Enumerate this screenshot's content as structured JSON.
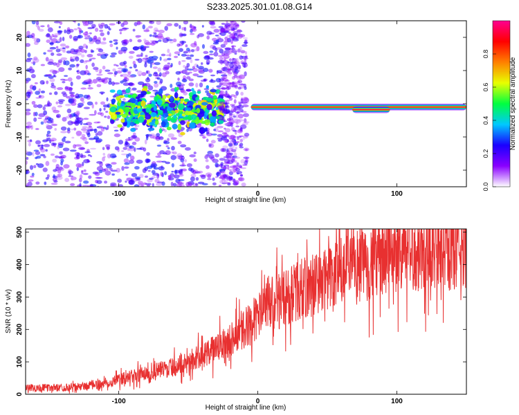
{
  "figure_title": "S233.2025.301.01.08.G14",
  "chart_data": [
    {
      "type": "heatmap",
      "title": "S233.2025.301.01.08.G14",
      "xlabel": "Height of straight line (km)",
      "ylabel": "Frequency (Hz)",
      "xlim": [
        -167,
        150
      ],
      "ylim": [
        -25,
        25
      ],
      "x_ticks": [
        -100,
        0,
        100
      ],
      "y_ticks": [
        -20,
        -10,
        0,
        10,
        20
      ],
      "x_tick_labels": [
        "-100",
        "0",
        "100"
      ],
      "y_tick_labels": [
        "-20",
        "-10",
        "0",
        "10",
        "20"
      ],
      "grid": false,
      "colorbar": {
        "label": "Normalized spectral amplitude",
        "range": [
          0.0,
          1.0
        ],
        "ticks": [
          0.0,
          0.2,
          0.4,
          0.6,
          0.8
        ],
        "tick_labels": [
          "0.0",
          "0.2",
          "0.4",
          "0.6",
          "0.8"
        ],
        "colormap": [
          "#ffffff",
          "#8a00ff",
          "#1a00ff",
          "#00c8ff",
          "#00ff40",
          "#e8ff00",
          "#ff8000",
          "#ff0000",
          "#ff0090"
        ]
      },
      "features": [
        {
          "description_region": "scattered noise",
          "x_range": [
            -167,
            -15
          ],
          "freq_spread": 25,
          "amplitude": 0.25
        },
        {
          "description_region": "noisy carrier cluster",
          "x_range": [
            -105,
            -25
          ],
          "freq_center": -2,
          "amplitude": 0.45
        },
        {
          "description_region": "noise column",
          "x_range": [
            -27,
            -8
          ],
          "freq_spread": 25,
          "amplitude": 0.2
        },
        {
          "description_region": "clean carrier line",
          "x_range": [
            -5,
            150
          ],
          "freq_center": -1,
          "amplitude": 0.95
        },
        {
          "description_region": "carrier offset segment",
          "x_range": [
            68,
            95
          ],
          "freq_center": -1.8,
          "amplitude": 0.95
        }
      ]
    },
    {
      "type": "line",
      "xlabel": "Height of straight line (km)",
      "ylabel": "SNR (10 * v/v)",
      "xlim": [
        -167,
        150
      ],
      "ylim": [
        0,
        510
      ],
      "x_ticks": [
        -100,
        0,
        100
      ],
      "y_ticks": [
        0,
        100,
        200,
        300,
        400,
        500
      ],
      "x_tick_labels": [
        "-100",
        "0",
        "100"
      ],
      "y_tick_labels": [
        "0",
        "100",
        "200",
        "300",
        "400",
        "500"
      ],
      "grid": false,
      "series": [
        {
          "name": "SNR",
          "color": "#e83030",
          "x": [
            -167,
            -150,
            -130,
            -115,
            -100,
            -90,
            -80,
            -70,
            -60,
            -50,
            -40,
            -30,
            -20,
            -10,
            0,
            10,
            20,
            30,
            40,
            50,
            60,
            70,
            80,
            90,
            100,
            110,
            120,
            130,
            140,
            150
          ],
          "y": [
            20,
            20,
            22,
            30,
            45,
            55,
            65,
            75,
            85,
            100,
            120,
            140,
            170,
            200,
            240,
            280,
            300,
            320,
            340,
            360,
            375,
            390,
            410,
            425,
            440,
            445,
            450,
            455,
            450,
            460
          ]
        }
      ]
    }
  ]
}
